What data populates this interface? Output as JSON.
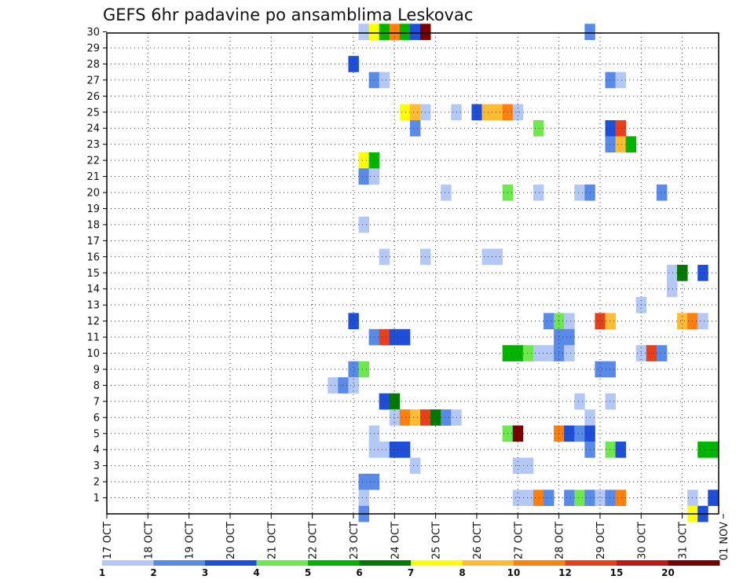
{
  "chart_data": {
    "type": "heatmap",
    "title": "GEFS 6hr padavine po ansamblima Leskovac",
    "xlabel": "",
    "ylabel": "",
    "x_tick_labels": [
      "17 OCT",
      "18 OCT",
      "19 OCT",
      "20 OCT",
      "21 OCT",
      "22 OCT",
      "23 OCT",
      "24 OCT",
      "25 OCT",
      "26 OCT",
      "27 OCT",
      "28 OCT",
      "29 OCT",
      "30 OCT",
      "31 OCT",
      "01 NOV"
    ],
    "xlim": [
      0,
      15
    ],
    "ylim": [
      0,
      30
    ],
    "y_ticks": [
      1,
      2,
      3,
      4,
      5,
      6,
      7,
      8,
      9,
      10,
      11,
      12,
      13,
      14,
      15,
      16,
      17,
      18,
      19,
      20,
      21,
      22,
      23,
      24,
      25,
      26,
      27,
      28,
      29,
      30
    ],
    "grid": true,
    "x_unit": "days since 17 OCT (6-hour steps)",
    "y_unit": "ensemble member",
    "colorbar": {
      "labels": [
        "1",
        "2",
        "3",
        "4",
        "5",
        "6",
        "7",
        "8",
        "10",
        "12",
        "15",
        "20"
      ],
      "colors": [
        "#b4c8f5",
        "#5a8ae8",
        "#1f4fd8",
        "#6fe84f",
        "#00b400",
        "#007a00",
        "#ffff00",
        "#ffbb33",
        "#ff7f0e",
        "#e8401a",
        "#c01818",
        "#7a0000"
      ]
    },
    "cells": [
      {
        "y": 30,
        "x": 6.25,
        "c": 0
      },
      {
        "y": 30,
        "x": 6.5,
        "c": 6
      },
      {
        "y": 30,
        "x": 6.75,
        "c": 4
      },
      {
        "y": 30,
        "x": 7.0,
        "c": 8
      },
      {
        "y": 30,
        "x": 7.25,
        "c": 4
      },
      {
        "y": 30,
        "x": 7.5,
        "c": 2
      },
      {
        "y": 30,
        "x": 7.75,
        "c": 11
      },
      {
        "y": 30,
        "x": 11.75,
        "c": 1
      },
      {
        "y": 28,
        "x": 6.0,
        "c": 2
      },
      {
        "y": 27,
        "x": 6.5,
        "c": 1
      },
      {
        "y": 27,
        "x": 6.75,
        "c": 0
      },
      {
        "y": 27,
        "x": 12.25,
        "c": 1
      },
      {
        "y": 27,
        "x": 12.5,
        "c": 0
      },
      {
        "y": 25,
        "x": 7.25,
        "c": 6
      },
      {
        "y": 25,
        "x": 7.5,
        "c": 7
      },
      {
        "y": 25,
        "x": 7.75,
        "c": 0
      },
      {
        "y": 25,
        "x": 8.5,
        "c": 0
      },
      {
        "y": 25,
        "x": 9.0,
        "c": 2
      },
      {
        "y": 25,
        "x": 9.25,
        "c": 7
      },
      {
        "y": 25,
        "x": 9.5,
        "c": 7
      },
      {
        "y": 25,
        "x": 9.75,
        "c": 8
      },
      {
        "y": 25,
        "x": 10.0,
        "c": 0
      },
      {
        "y": 24,
        "x": 7.5,
        "c": 1
      },
      {
        "y": 24,
        "x": 10.5,
        "c": 3
      },
      {
        "y": 24,
        "x": 12.25,
        "c": 2
      },
      {
        "y": 24,
        "x": 12.5,
        "c": 9
      },
      {
        "y": 23,
        "x": 12.25,
        "c": 1
      },
      {
        "y": 23,
        "x": 12.5,
        "c": 7
      },
      {
        "y": 23,
        "x": 12.75,
        "c": 4
      },
      {
        "y": 22,
        "x": 6.25,
        "c": 6
      },
      {
        "y": 22,
        "x": 6.5,
        "c": 4
      },
      {
        "y": 21,
        "x": 6.25,
        "c": 1
      },
      {
        "y": 21,
        "x": 6.5,
        "c": 0
      },
      {
        "y": 20,
        "x": 8.25,
        "c": 0
      },
      {
        "y": 20,
        "x": 9.75,
        "c": 3
      },
      {
        "y": 20,
        "x": 10.5,
        "c": 0
      },
      {
        "y": 20,
        "x": 11.5,
        "c": 0
      },
      {
        "y": 20,
        "x": 11.75,
        "c": 1
      },
      {
        "y": 20,
        "x": 13.5,
        "c": 1
      },
      {
        "y": 18,
        "x": 6.25,
        "c": 0
      },
      {
        "y": 16,
        "x": 6.75,
        "c": 0
      },
      {
        "y": 16,
        "x": 7.75,
        "c": 0
      },
      {
        "y": 16,
        "x": 9.25,
        "c": 0
      },
      {
        "y": 16,
        "x": 9.5,
        "c": 0
      },
      {
        "y": 15,
        "x": 13.75,
        "c": 0
      },
      {
        "y": 15,
        "x": 14.0,
        "c": 5
      },
      {
        "y": 15,
        "x": 14.5,
        "c": 2
      },
      {
        "y": 14,
        "x": 13.75,
        "c": 0
      },
      {
        "y": 13,
        "x": 13.0,
        "c": 0
      },
      {
        "y": 12,
        "x": 6.0,
        "c": 2
      },
      {
        "y": 12,
        "x": 10.75,
        "c": 1
      },
      {
        "y": 12,
        "x": 11.0,
        "c": 3
      },
      {
        "y": 12,
        "x": 11.25,
        "c": 0
      },
      {
        "y": 12,
        "x": 12.0,
        "c": 9
      },
      {
        "y": 12,
        "x": 12.25,
        "c": 7
      },
      {
        "y": 12,
        "x": 14.0,
        "c": 7
      },
      {
        "y": 12,
        "x": 14.25,
        "c": 8
      },
      {
        "y": 12,
        "x": 14.5,
        "c": 0
      },
      {
        "y": 11,
        "x": 6.5,
        "c": 1
      },
      {
        "y": 11,
        "x": 6.75,
        "c": 9
      },
      {
        "y": 11,
        "x": 7.0,
        "c": 2
      },
      {
        "y": 11,
        "x": 7.25,
        "c": 2
      },
      {
        "y": 11,
        "x": 11.0,
        "c": 1
      },
      {
        "y": 11,
        "x": 11.25,
        "c": 1
      },
      {
        "y": 10,
        "x": 9.75,
        "c": 4
      },
      {
        "y": 10,
        "x": 10.0,
        "c": 4
      },
      {
        "y": 10,
        "x": 10.25,
        "c": 3
      },
      {
        "y": 10,
        "x": 10.5,
        "c": 0
      },
      {
        "y": 10,
        "x": 10.75,
        "c": 0
      },
      {
        "y": 10,
        "x": 11.0,
        "c": 1
      },
      {
        "y": 10,
        "x": 11.25,
        "c": 0
      },
      {
        "y": 10,
        "x": 13.0,
        "c": 0
      },
      {
        "y": 10,
        "x": 13.25,
        "c": 9
      },
      {
        "y": 10,
        "x": 13.5,
        "c": 1
      },
      {
        "y": 9,
        "x": 6.0,
        "c": 1
      },
      {
        "y": 9,
        "x": 6.25,
        "c": 3
      },
      {
        "y": 9,
        "x": 12.0,
        "c": 1
      },
      {
        "y": 9,
        "x": 12.25,
        "c": 1
      },
      {
        "y": 8,
        "x": 5.5,
        "c": 0
      },
      {
        "y": 8,
        "x": 5.75,
        "c": 1
      },
      {
        "y": 8,
        "x": 6.0,
        "c": 0
      },
      {
        "y": 7,
        "x": 6.75,
        "c": 2
      },
      {
        "y": 7,
        "x": 7.0,
        "c": 5
      },
      {
        "y": 7,
        "x": 11.5,
        "c": 0
      },
      {
        "y": 7,
        "x": 12.25,
        "c": 0
      },
      {
        "y": 6,
        "x": 7.0,
        "c": 0
      },
      {
        "y": 6,
        "x": 7.25,
        "c": 8
      },
      {
        "y": 6,
        "x": 7.5,
        "c": 7
      },
      {
        "y": 6,
        "x": 7.75,
        "c": 9
      },
      {
        "y": 6,
        "x": 8.0,
        "c": 5
      },
      {
        "y": 6,
        "x": 8.25,
        "c": 1
      },
      {
        "y": 6,
        "x": 8.5,
        "c": 0
      },
      {
        "y": 6,
        "x": 11.75,
        "c": 0
      },
      {
        "y": 5,
        "x": 6.5,
        "c": 0
      },
      {
        "y": 5,
        "x": 9.75,
        "c": 3
      },
      {
        "y": 5,
        "x": 10.0,
        "c": 11
      },
      {
        "y": 5,
        "x": 11.0,
        "c": 8
      },
      {
        "y": 5,
        "x": 11.25,
        "c": 2
      },
      {
        "y": 5,
        "x": 11.5,
        "c": 1
      },
      {
        "y": 5,
        "x": 11.75,
        "c": 2
      },
      {
        "y": 4,
        "x": 6.5,
        "c": 0
      },
      {
        "y": 4,
        "x": 6.75,
        "c": 0
      },
      {
        "y": 4,
        "x": 7.0,
        "c": 2
      },
      {
        "y": 4,
        "x": 7.25,
        "c": 2
      },
      {
        "y": 4,
        "x": 11.75,
        "c": 1
      },
      {
        "y": 4,
        "x": 12.25,
        "c": 3
      },
      {
        "y": 4,
        "x": 12.5,
        "c": 2
      },
      {
        "y": 4,
        "x": 14.5,
        "c": 4
      },
      {
        "y": 4,
        "x": 14.75,
        "c": 4
      },
      {
        "y": 3,
        "x": 7.5,
        "c": 0
      },
      {
        "y": 3,
        "x": 10.0,
        "c": 0
      },
      {
        "y": 3,
        "x": 10.25,
        "c": 0
      },
      {
        "y": 2,
        "x": 6.25,
        "c": 1
      },
      {
        "y": 2,
        "x": 6.5,
        "c": 1
      },
      {
        "y": 1,
        "x": 6.25,
        "c": 0
      },
      {
        "y": 1,
        "x": 10.0,
        "c": 0
      },
      {
        "y": 1,
        "x": 10.25,
        "c": 0
      },
      {
        "y": 1,
        "x": 10.5,
        "c": 8
      },
      {
        "y": 1,
        "x": 10.75,
        "c": 1
      },
      {
        "y": 1,
        "x": 11.25,
        "c": 1
      },
      {
        "y": 1,
        "x": 11.5,
        "c": 3
      },
      {
        "y": 1,
        "x": 11.75,
        "c": 1
      },
      {
        "y": 1,
        "x": 12.0,
        "c": 0
      },
      {
        "y": 1,
        "x": 12.25,
        "c": 1
      },
      {
        "y": 1,
        "x": 12.5,
        "c": 8
      },
      {
        "y": 1,
        "x": 14.25,
        "c": 0
      },
      {
        "y": 1,
        "x": 14.75,
        "c": 2
      },
      {
        "y": 0,
        "x": 6.25,
        "c": 1
      },
      {
        "y": 0,
        "x": 14.25,
        "c": 6
      },
      {
        "y": 0,
        "x": 14.5,
        "c": 2
      }
    ]
  }
}
